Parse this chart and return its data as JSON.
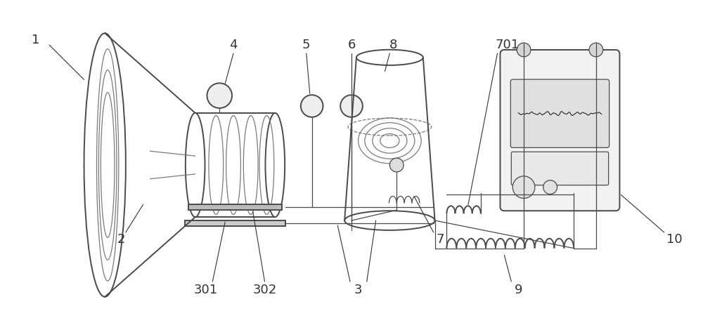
{
  "bg_color": "#ffffff",
  "line_color": "#4a4a4a",
  "label_color": "#333333",
  "fig_width": 10.0,
  "fig_height": 4.7
}
